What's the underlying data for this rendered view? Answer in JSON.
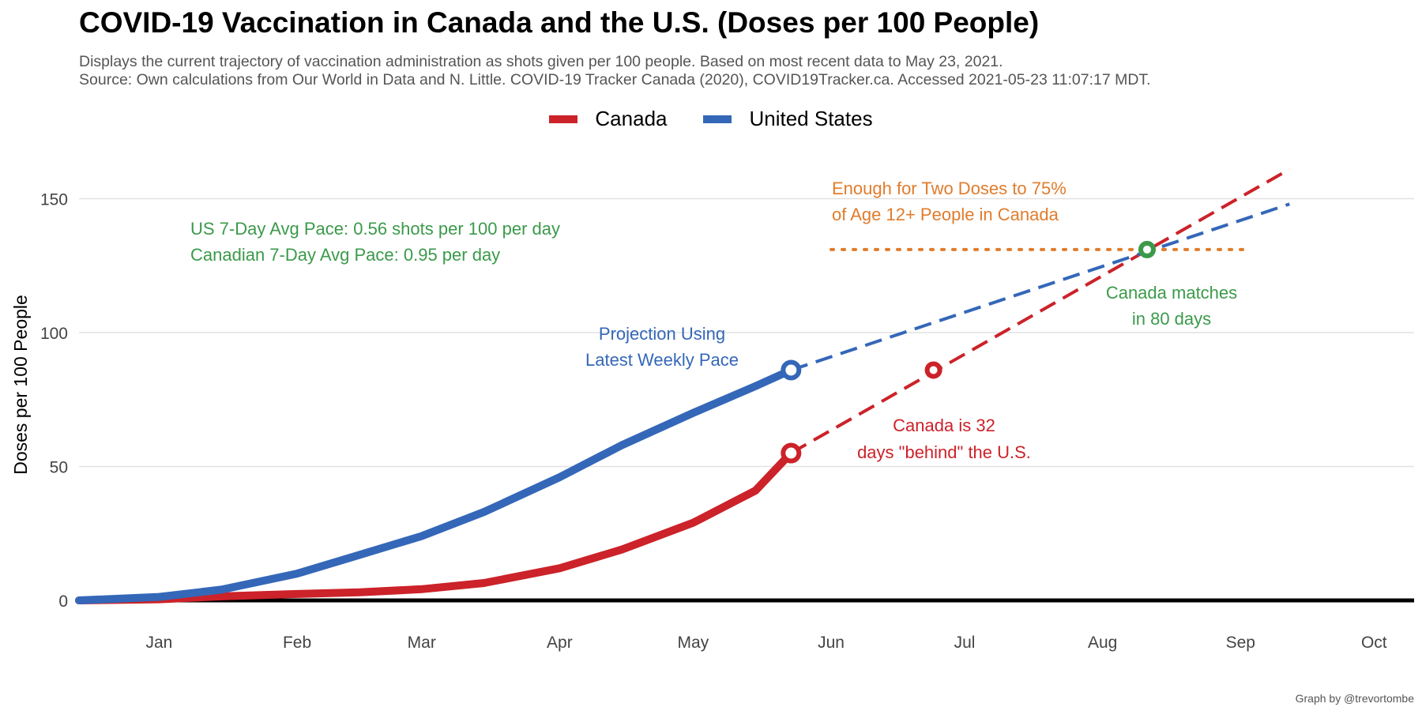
{
  "title": "COVID-19 Vaccination in Canada and the U.S. (Doses per 100 People)",
  "subtitle_line1": "Displays the current trajectory of vaccination administration as shots given per 100 people. Based on most recent data to May 23, 2021.",
  "subtitle_line2": "Source: Own calculations from Our World in Data and N. Little. COVID-19 Tracker Canada (2020), COVID19Tracker.ca. Accessed 2021-05-23 11:07:17 MDT.",
  "caption": "Graph by @trevortombe",
  "colors": {
    "canada": "#cc2229",
    "us": "#3467b8",
    "green": "#3b9a4a",
    "orange": "#e07c2c",
    "grid": "#e2e2e2",
    "axis": "#000000"
  },
  "chart_data": {
    "type": "line",
    "title": "COVID-19 Vaccination in Canada and the U.S. (Doses per 100 People)",
    "xlabel": "",
    "ylabel": "Doses per 100 People",
    "x_axis": {
      "type": "date",
      "ticks": [
        "Jan",
        "Feb",
        "Mar",
        "Apr",
        "May",
        "Jun",
        "Jul",
        "Aug",
        "Sep",
        "Oct"
      ],
      "range": [
        "2020-12-14",
        "2021-10-10"
      ]
    },
    "ylim": [
      0,
      160
    ],
    "yticks": [
      0,
      50,
      100,
      150
    ],
    "grid": true,
    "legend": "top-center",
    "series": [
      {
        "name": "Canada",
        "color": "#cc2229",
        "actual": [
          [
            "2020-12-14",
            0
          ],
          [
            "2021-01-01",
            0.4
          ],
          [
            "2021-01-15",
            1.5
          ],
          [
            "2021-02-01",
            2.4
          ],
          [
            "2021-02-15",
            3.0
          ],
          [
            "2021-03-01",
            4.2
          ],
          [
            "2021-03-15",
            6.5
          ],
          [
            "2021-04-01",
            12
          ],
          [
            "2021-04-15",
            19
          ],
          [
            "2021-05-01",
            29
          ],
          [
            "2021-05-15",
            41
          ],
          [
            "2021-05-23",
            55
          ]
        ],
        "projection": [
          [
            "2021-05-23",
            55
          ],
          [
            "2021-09-12",
            161
          ]
        ]
      },
      {
        "name": "United States",
        "color": "#3467b8",
        "actual": [
          [
            "2020-12-14",
            0
          ],
          [
            "2021-01-01",
            1.3
          ],
          [
            "2021-01-15",
            4
          ],
          [
            "2021-02-01",
            10
          ],
          [
            "2021-02-15",
            17
          ],
          [
            "2021-03-01",
            24
          ],
          [
            "2021-03-15",
            33
          ],
          [
            "2021-04-01",
            46
          ],
          [
            "2021-04-15",
            58
          ],
          [
            "2021-05-01",
            70
          ],
          [
            "2021-05-15",
            80
          ],
          [
            "2021-05-23",
            86
          ]
        ],
        "projection": [
          [
            "2021-05-23",
            86
          ],
          [
            "2021-09-12",
            148
          ]
        ]
      }
    ],
    "markers": [
      {
        "series": "Canada",
        "x": "2021-05-23",
        "y": 55
      },
      {
        "series": "United States",
        "x": "2021-05-23",
        "y": 86
      },
      {
        "series": "Canada",
        "x": "2021-06-24",
        "y": 86
      },
      {
        "series": "Canada matches",
        "x": "2021-08-11",
        "y": 131
      }
    ],
    "reference_line": {
      "y": 131,
      "x_from": "2021-06-01",
      "x_to": "2021-09-03",
      "style": "dotted"
    },
    "annotations": {
      "pace_line1": "US 7-Day Avg Pace: 0.56 shots per 100 per day",
      "pace_line2": "Canadian 7-Day Avg Pace: 0.95 per day",
      "target_line1": "Enough for Two Doses to 75%",
      "target_line2": "of Age 12+ People in Canada",
      "projection_line1": "Projection Using",
      "projection_line2": "Latest Weekly Pace",
      "behind_line1": "Canada is 32",
      "behind_line2": "days \"behind\" the U.S.",
      "matches_line1": "Canada matches",
      "matches_line2": "in 80 days"
    }
  }
}
